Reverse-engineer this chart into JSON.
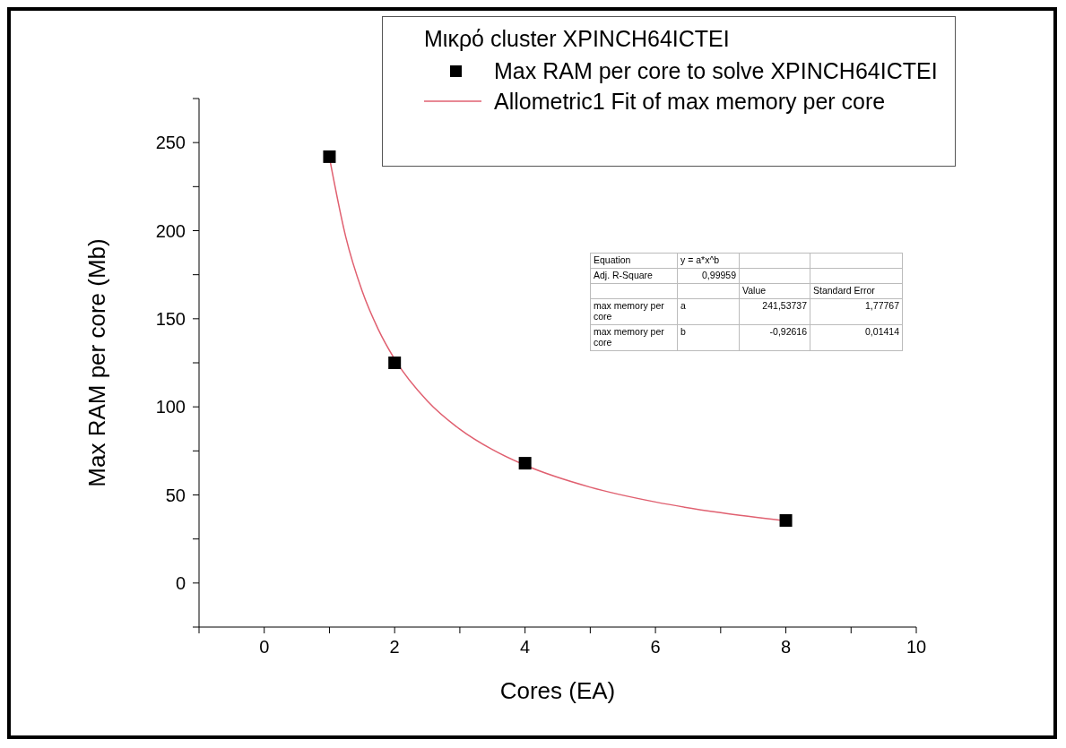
{
  "chart_data": {
    "type": "scatter",
    "xlabel": "Cores (EA)",
    "ylabel": "Max RAM per core (Mb)",
    "legend_title": "Μικρό cluster XPINCH64ICTEI",
    "legend": "top right",
    "xlim": [
      -1,
      10
    ],
    "xticks": [
      {
        "value": -1,
        "label": null
      },
      0,
      {
        "value": 1,
        "label": null
      },
      2,
      {
        "value": 3,
        "label": null
      },
      4,
      {
        "value": 5,
        "label": null
      },
      6,
      {
        "value": 7,
        "label": null
      },
      8,
      {
        "value": 9,
        "label": null
      },
      10
    ],
    "ylim": [
      -25,
      275
    ],
    "yticks": [
      {
        "value": -25,
        "label": null
      },
      0,
      {
        "value": 25,
        "label": null
      },
      50,
      {
        "value": 75,
        "label": null
      },
      100,
      {
        "value": 125,
        "label": null
      },
      150,
      {
        "value": 175,
        "label": null
      },
      200,
      {
        "value": 225,
        "label": null
      },
      250,
      {
        "value": 275,
        "label": null
      }
    ],
    "series": [
      {
        "name": "Max RAM per core to solve XPINCH64ICTEI",
        "marker": "square",
        "color": "#000000",
        "x": [
          1,
          2,
          4,
          8
        ],
        "values": [
          242,
          125,
          68,
          35.5
        ]
      },
      {
        "name": "Allometric1 Fit of max memory per core",
        "type": "line",
        "color": "#e06070",
        "line_style": "solid",
        "marker": "none",
        "x": [
          1,
          1.25,
          1.5,
          1.75,
          2,
          2.5,
          3,
          3.5,
          4,
          5,
          6,
          7,
          8
        ],
        "values": [
          241.5,
          196.5,
          165.9,
          143.9,
          127.1,
          103.4,
          87.3,
          75.7,
          66.9,
          54.4,
          46.0,
          39.9,
          35.2
        ]
      }
    ],
    "annotations": [
      "Equation",
      "y = a*x^b",
      "Adj. R-Square",
      "0,99959",
      "Value",
      "Standard Error",
      "max memory per core",
      "a",
      "241,53737",
      "1,77767",
      "max memory per core",
      "b",
      "-0,92616",
      "0,01414"
    ]
  }
}
